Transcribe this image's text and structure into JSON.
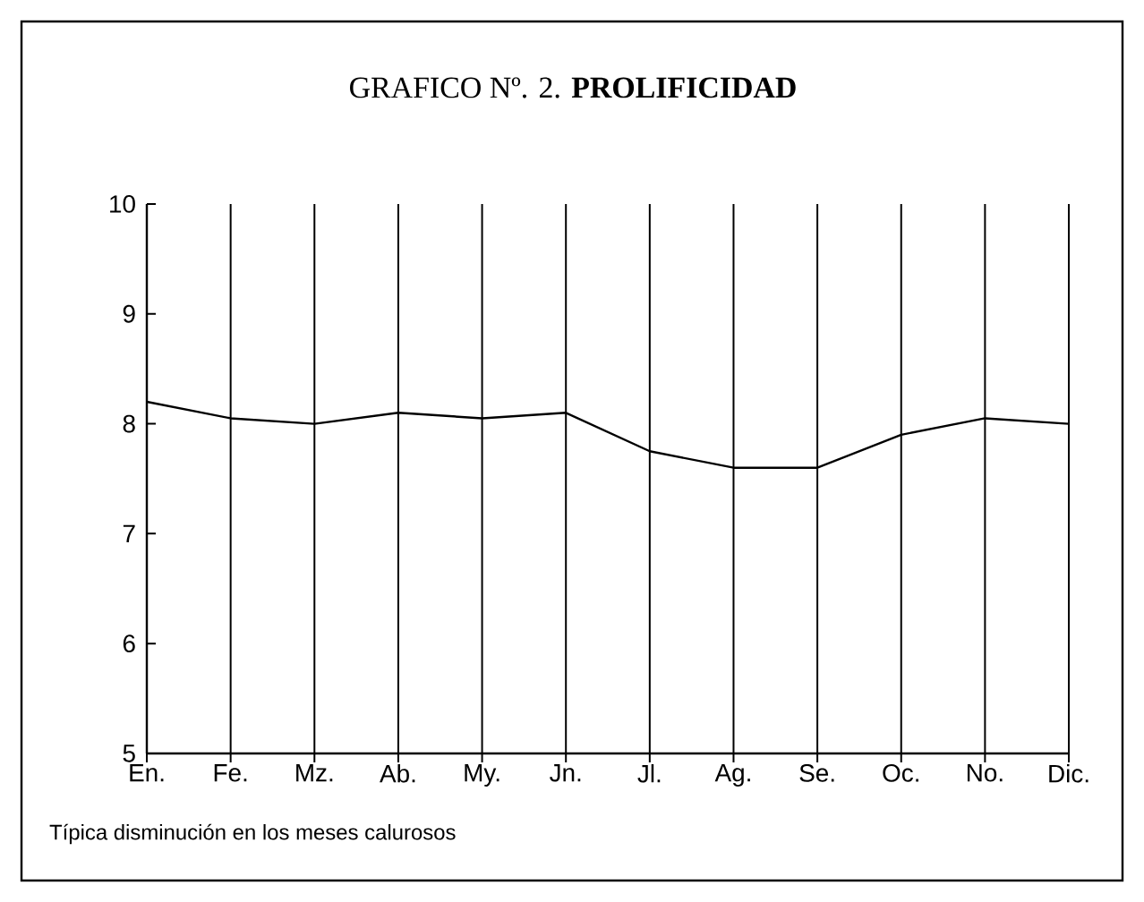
{
  "chart_data": {
    "type": "line",
    "title": "GRAFICO Nº. 2. **PROLIFICIDAD**",
    "categories": [
      "En.",
      "Fe.",
      "Mz.",
      "Ab.",
      "My.",
      "Jn.",
      "Jl.",
      "Ag.",
      "Se.",
      "Oc.",
      "No.",
      "Dic."
    ],
    "values": [
      8.2,
      8.05,
      8.0,
      8.1,
      8.05,
      8.1,
      7.75,
      7.6,
      7.6,
      7.9,
      8.05,
      8.0
    ],
    "color": "#000000",
    "ylim": [
      5,
      10
    ],
    "yticks": [
      5,
      6,
      7,
      8,
      9,
      10
    ],
    "grid": "x",
    "marker": "none",
    "line_style": "solid",
    "annotations": [
      "Típica disminución en los meses calurosos"
    ]
  }
}
